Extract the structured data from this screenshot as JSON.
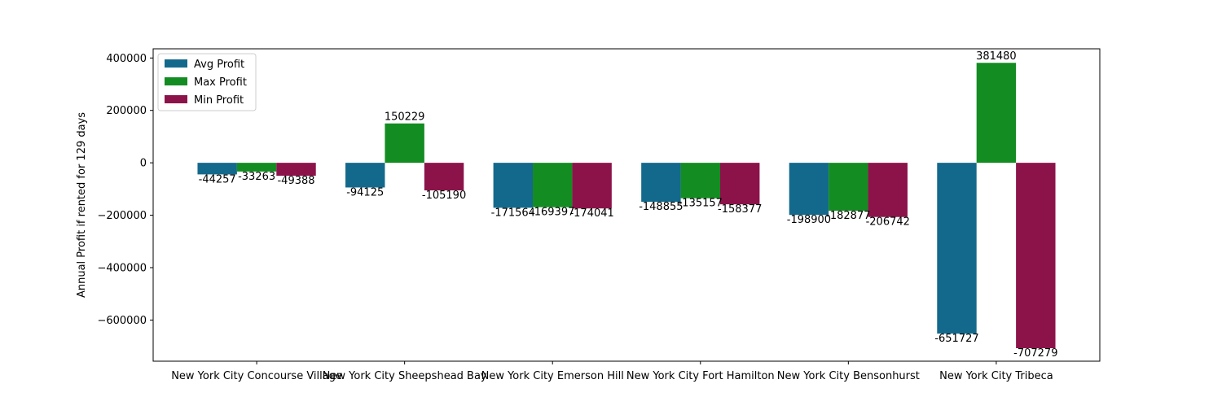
{
  "chart_data": {
    "type": "bar",
    "title": "",
    "xlabel": "",
    "ylabel": "Annual Profit if rented for 129 days",
    "categories": [
      "New York City Concourse Village",
      "New York City Sheepshead Bay",
      "New York City Emerson Hill",
      "New York City Fort Hamilton",
      "New York City Bensonhurst",
      "New York City Tribeca"
    ],
    "series": [
      {
        "name": "Avg Profit",
        "color": "#13698c",
        "values": [
          -44257,
          -94125,
          -171564,
          -148855,
          -198900,
          -651727
        ]
      },
      {
        "name": "Max Profit",
        "color": "#138c22",
        "values": [
          -33263,
          150229,
          -169397,
          -135157,
          -182877,
          381480
        ]
      },
      {
        "name": "Min Profit",
        "color": "#8c134a",
        "values": [
          -49388,
          -105190,
          -174041,
          -158377,
          -206742,
          -707279
        ]
      }
    ],
    "ylim": [
      -757000,
      435000
    ],
    "yticks": [
      -600000,
      -400000,
      -200000,
      0,
      200000,
      400000
    ],
    "ytick_labels": [
      "−600000",
      "−400000",
      "−200000",
      "0",
      "200000",
      "400000"
    ],
    "grid": false,
    "legend_position": "top-left"
  }
}
